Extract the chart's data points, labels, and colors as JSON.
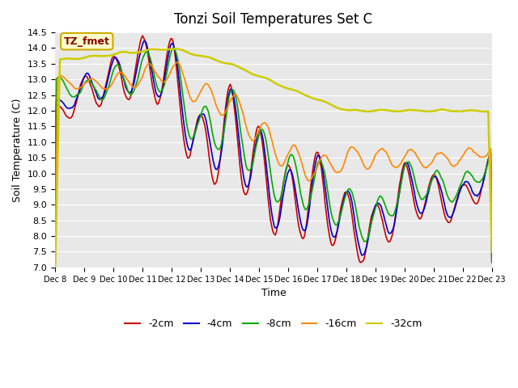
{
  "title": "Tonzi Soil Temperatures Set C",
  "xlabel": "Time",
  "ylabel": "Soil Temperature (C)",
  "ylim": [
    7.0,
    14.5
  ],
  "annotation": "TZ_fmet",
  "legend_labels": [
    "-2cm",
    "-4cm",
    "-8cm",
    "-16cm",
    "-32cm"
  ],
  "legend_colors": [
    "#cc0000",
    "#0000cc",
    "#00aa00",
    "#ff8800",
    "#cccc00"
  ],
  "line_colors": [
    "#cc0000",
    "#0000cc",
    "#00aa00",
    "#ff8800",
    "#cccc00"
  ],
  "background_color": "#e8e8e8",
  "plot_bg_color": "#e8e8e8",
  "n_points": 360,
  "x_tick_labels": [
    "Dec 8",
    "Dec 9",
    "Dec 10",
    "Dec 11",
    "Dec 12",
    "Dec 13",
    "Dec 14",
    "Dec 15",
    "Dec 16",
    "Dec 17",
    "Dec 18",
    "Dec 19",
    "Dec 20",
    "Dec 21",
    "Dec 22",
    "Dec 23"
  ],
  "x_tick_positions": [
    0,
    24,
    48,
    72,
    96,
    120,
    144,
    168,
    192,
    216,
    240,
    264,
    288,
    312,
    336,
    360
  ]
}
